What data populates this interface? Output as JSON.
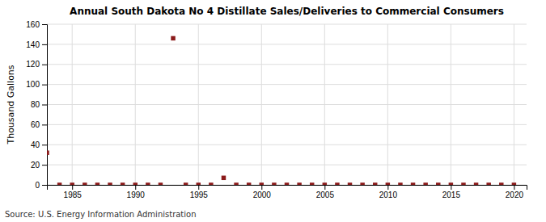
{
  "chart_data": {
    "type": "scatter",
    "title": "Annual South Dakota No 4 Distillate Sales/Deliveries to Commercial Consumers",
    "y_label": "Thousand Gallons",
    "annotations": [
      "Source: U.S. Energy Information Administration"
    ],
    "x": [
      1983,
      1984,
      1985,
      1986,
      1987,
      1988,
      1989,
      1990,
      1991,
      1992,
      1993,
      1994,
      1995,
      1996,
      1997,
      1998,
      1999,
      2000,
      2001,
      2002,
      2003,
      2004,
      2005,
      2006,
      2007,
      2008,
      2009,
      2010,
      2011,
      2012,
      2013,
      2014,
      2015,
      2016,
      2017,
      2018,
      2019,
      2020
    ],
    "values": [
      32,
      0,
      0,
      0,
      0,
      0,
      0,
      0,
      0,
      0,
      146,
      0,
      0,
      0,
      7,
      0,
      0,
      0,
      0,
      0,
      0,
      0,
      0,
      0,
      0,
      0,
      0,
      0,
      0,
      0,
      0,
      0,
      0,
      0,
      0,
      0,
      0,
      0
    ],
    "color": "#8b1a1a",
    "marker": "square",
    "xlim": [
      1983,
      2021
    ],
    "ylim": [
      0,
      160
    ],
    "xticks": [
      1985,
      1990,
      1995,
      2000,
      2005,
      2010,
      2015,
      2020
    ],
    "yticks": [
      0,
      20,
      40,
      60,
      80,
      100,
      120,
      140,
      160
    ],
    "grid": true
  }
}
